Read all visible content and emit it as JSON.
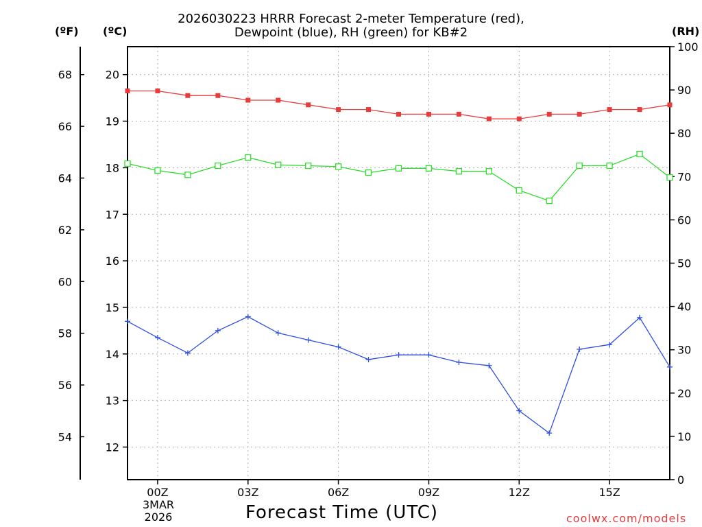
{
  "chart_data": {
    "type": "line",
    "title_line1": "2026030223 HRRR Forecast 2-meter Temperature (red),",
    "title_line2": "Dewpoint (blue), RH (green) for KB#2",
    "xlabel": "Forecast Time (UTC)",
    "left_unit_f": "(ºF)",
    "left_unit_c": "(ºC)",
    "right_unit": "(RH)",
    "date_label": {
      "day": "3MAR",
      "year": "2026"
    },
    "credit": "coolwx.com/models",
    "x_hours": [
      -1,
      0,
      1,
      2,
      3,
      4,
      5,
      6,
      7,
      8,
      9,
      10,
      11,
      12,
      13,
      14,
      15,
      16,
      17
    ],
    "x_ticks": [
      {
        "hour": 0,
        "label": "00Z"
      },
      {
        "hour": 3,
        "label": "03Z"
      },
      {
        "hour": 6,
        "label": "06Z"
      },
      {
        "hour": 9,
        "label": "09Z"
      },
      {
        "hour": 12,
        "label": "12Z"
      },
      {
        "hour": 15,
        "label": "15Z"
      }
    ],
    "xlim": [
      -1,
      17
    ],
    "celsius_range": [
      11.3,
      20.6
    ],
    "celsius_ticks": [
      12,
      13,
      14,
      15,
      16,
      17,
      18,
      19,
      20
    ],
    "fahrenheit_ticks": [
      54,
      56,
      58,
      60,
      62,
      64,
      66,
      68
    ],
    "rh_range": [
      0,
      100
    ],
    "rh_ticks": [
      0,
      10,
      20,
      30,
      40,
      50,
      60,
      70,
      80,
      90,
      100
    ],
    "series": [
      {
        "name": "Temperature",
        "axis": "celsius",
        "color": "#e83c3c",
        "marker": "filled-square",
        "values": [
          19.65,
          19.65,
          19.55,
          19.55,
          19.45,
          19.45,
          19.35,
          19.25,
          19.25,
          19.15,
          19.15,
          19.15,
          19.05,
          19.05,
          19.15,
          19.15,
          19.25,
          19.25,
          19.35
        ]
      },
      {
        "name": "Dewpoint",
        "axis": "celsius",
        "color": "#2f4fe0",
        "marker": "plus",
        "values": [
          14.7,
          14.35,
          14.02,
          14.5,
          14.8,
          14.45,
          14.3,
          14.15,
          13.88,
          13.98,
          13.98,
          13.82,
          13.75,
          12.78,
          12.3,
          14.1,
          14.2,
          14.78,
          13.72
        ]
      },
      {
        "name": "RH",
        "axis": "rh",
        "color": "#2fdc2f",
        "marker": "open-square",
        "values": [
          73,
          71.4,
          70.4,
          72.5,
          74.4,
          72.7,
          72.5,
          72.3,
          70.9,
          71.9,
          71.9,
          71.2,
          71.2,
          66.8,
          64.4,
          72.5,
          72.5,
          75.2,
          69.8
        ]
      }
    ],
    "grid": true
  }
}
